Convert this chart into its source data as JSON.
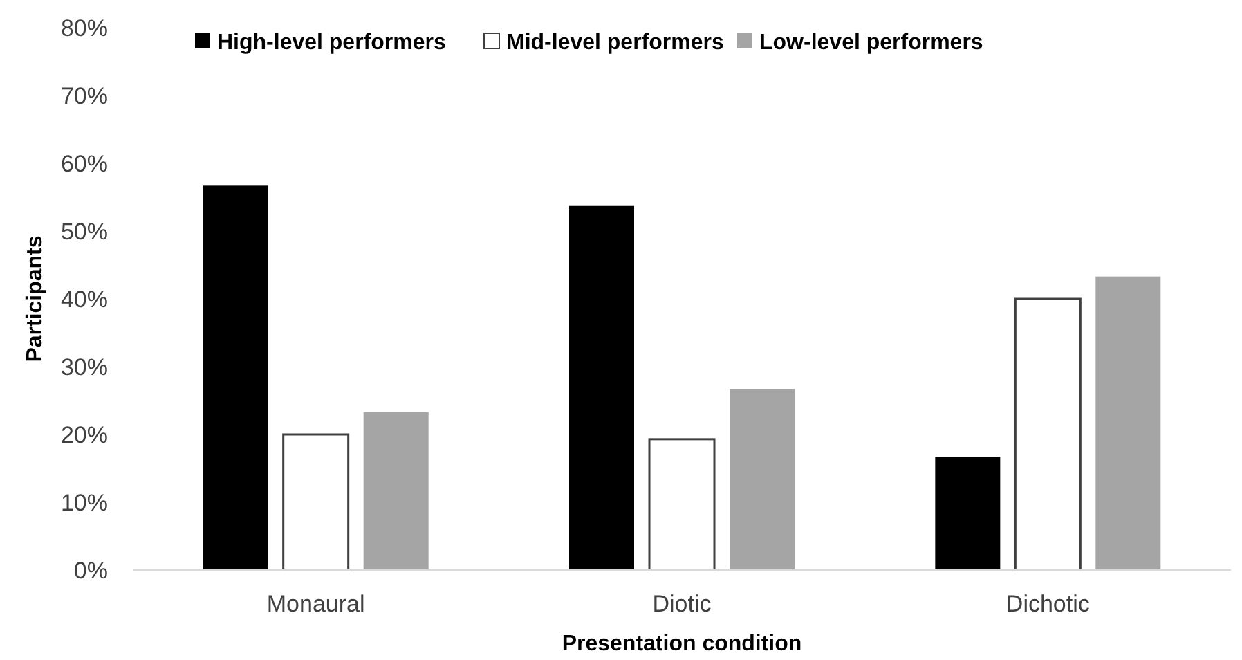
{
  "chart_data": {
    "type": "bar",
    "xlabel": "Presentation condition",
    "ylabel": "Participants",
    "categories": [
      "Monaural",
      "Diotic",
      "Dichotic"
    ],
    "series": [
      {
        "name": "High-level performers",
        "color": "#000000",
        "values": [
          56.7,
          53.7,
          16.7
        ]
      },
      {
        "name": "Mid-level performers",
        "color": "#ffffff",
        "values": [
          20,
          19.3,
          40
        ]
      },
      {
        "name": "Low-level performers",
        "color": "#a5a5a5",
        "values": [
          23.3,
          26.7,
          43.3
        ]
      }
    ],
    "ylim": [
      0,
      80
    ],
    "yticks": [
      {
        "value": 0,
        "label": "0%"
      },
      {
        "value": 10,
        "label": "10%"
      },
      {
        "value": 20,
        "label": "20%"
      },
      {
        "value": 30,
        "label": "30%"
      },
      {
        "value": 40,
        "label": "40%"
      },
      {
        "value": 50,
        "label": "50%"
      },
      {
        "value": 60,
        "label": "60%"
      },
      {
        "value": 70,
        "label": "70%"
      },
      {
        "value": 80,
        "label": "80%"
      }
    ],
    "grid": false,
    "legend": "top"
  }
}
